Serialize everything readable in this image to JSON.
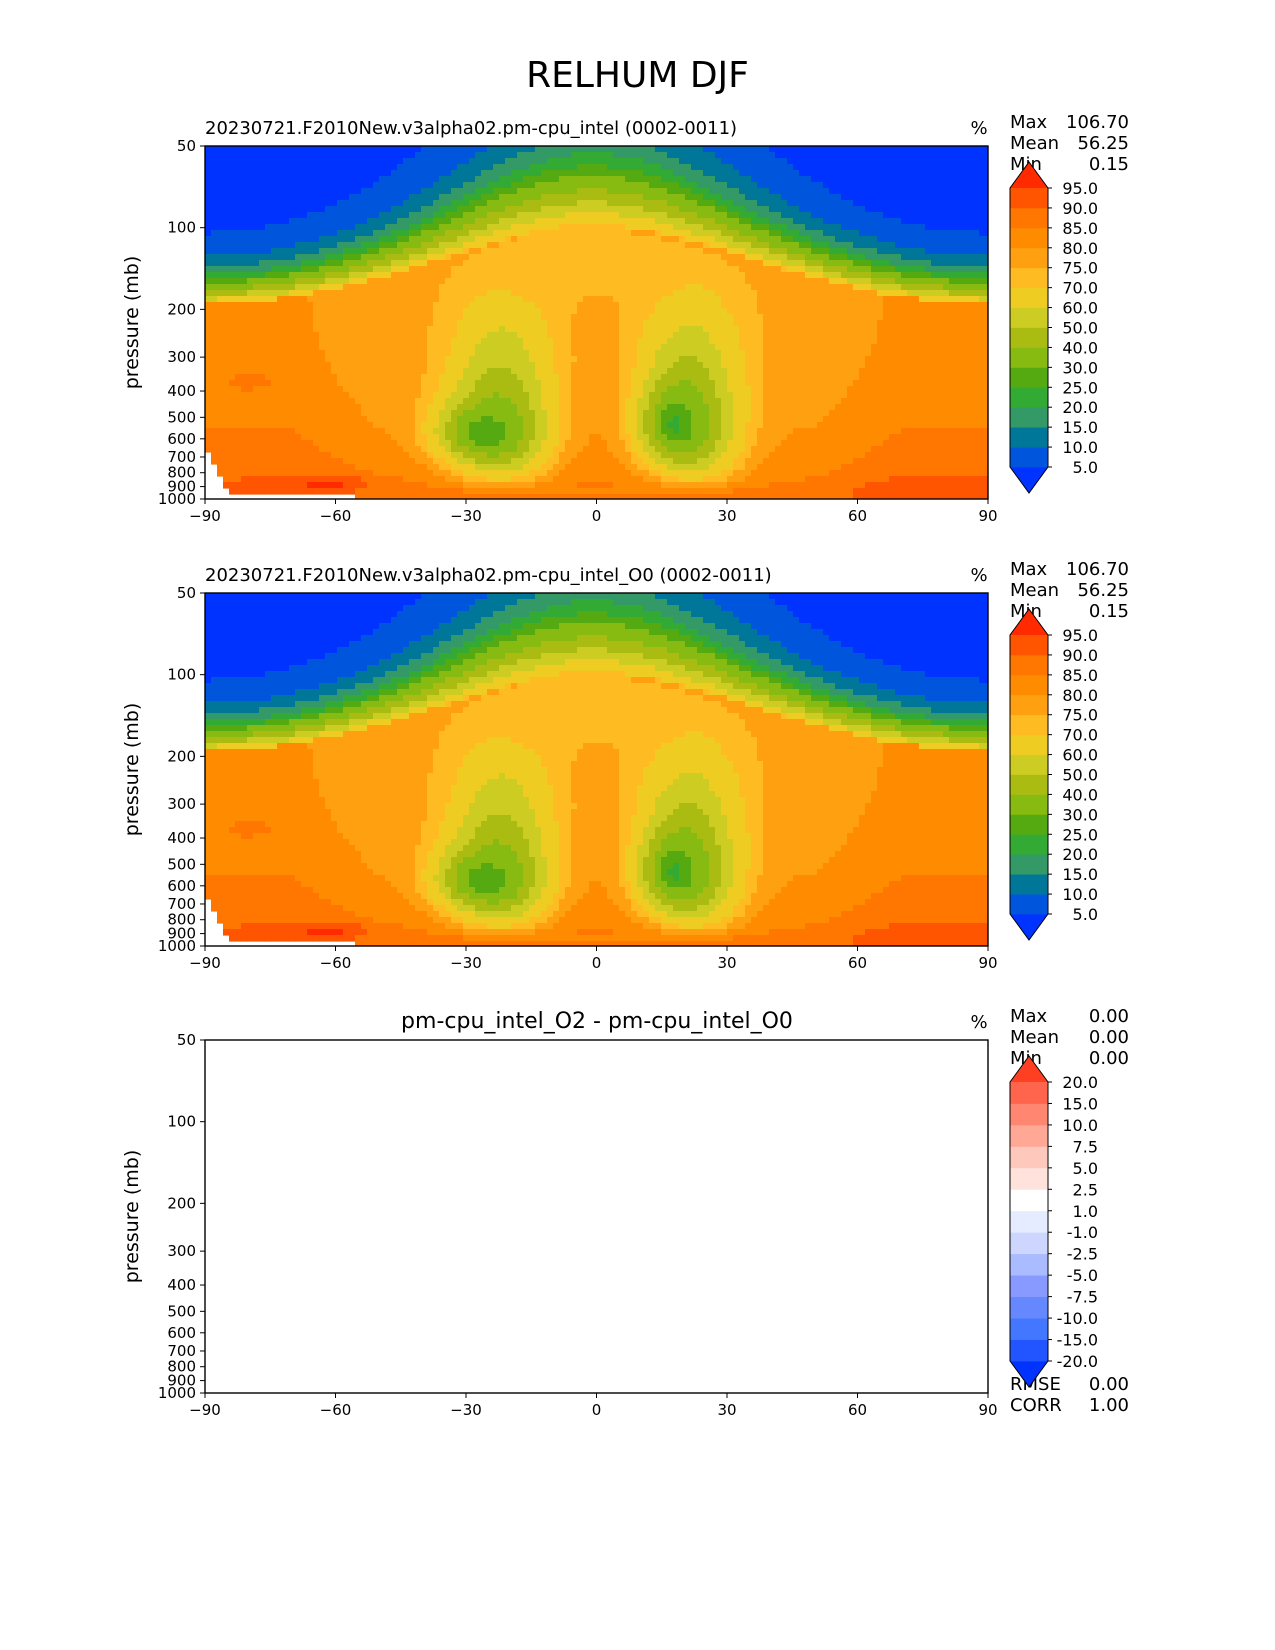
{
  "title": "RELHUM DJF",
  "colors": {
    "rh_fill": [
      "#0033ff",
      "#0055dd",
      "#007799",
      "#339966",
      "#33aa33",
      "#55aa11",
      "#88bb11",
      "#aabb11",
      "#cccc22",
      "#eecc22",
      "#ffbb22",
      "#ffa011",
      "#ff8c00",
      "#ff7700",
      "#ff5500",
      "#ff2a00"
    ],
    "diff_fill": [
      "#0033ff",
      "#2255ff",
      "#4477ff",
      "#6688ff",
      "#8899ff",
      "#aabbff",
      "#ccd6ff",
      "#e6ecff",
      "#ffffff",
      "#ffe2dc",
      "#ffc8bd",
      "#ffa896",
      "#ff8670",
      "#ff654d",
      "#ff3f22"
    ]
  },
  "chart_data": [
    {
      "type": "contour",
      "title": "20230721.F2010New.v3alpha02.pm-cpu_intel (0002-0011)",
      "units": "%",
      "xlabel": "",
      "ylabel": "pressure (mb)",
      "x_ticks": [
        "−90",
        "−60",
        "−30",
        "0",
        "30",
        "60",
        "90"
      ],
      "y_ticks": [
        "50",
        "100",
        "200",
        "300",
        "400",
        "500",
        "600",
        "700",
        "800",
        "900",
        "1000"
      ],
      "xlim": [
        -90,
        90
      ],
      "ylim": [
        1000,
        50
      ],
      "stats": {
        "max_label": "Max",
        "max": "106.70",
        "mean_label": "Mean",
        "mean": "56.25",
        "min_label": "Min",
        "min": "0.15"
      },
      "colorbar_levels": [
        "5.0",
        "10.0",
        "15.0",
        "20.0",
        "25.0",
        "30.0",
        "40.0",
        "50.0",
        "60.0",
        "70.0",
        "75.0",
        "80.0",
        "85.0",
        "90.0",
        "95.0"
      ],
      "blobs": [
        {
          "lat": -62,
          "p": 880,
          "v": 96,
          "rx": 10,
          "ry": 55
        },
        {
          "lat": -80,
          "p": 370,
          "v": 86,
          "rx": 8,
          "ry": 40
        },
        {
          "lat": 78,
          "p": 920,
          "v": 95,
          "rx": 14,
          "ry": 60
        },
        {
          "lat": -26,
          "p": 570,
          "v": 26,
          "rx": 10,
          "ry": 140
        },
        {
          "lat": 18,
          "p": 530,
          "v": 24,
          "rx": 7,
          "ry": 160
        },
        {
          "lat": -3,
          "p": 140,
          "v": 74,
          "rx": 22,
          "ry": 50
        },
        {
          "lat": 0,
          "p": 930,
          "v": 84,
          "rx": 14,
          "ry": 35
        }
      ]
    },
    {
      "type": "contour",
      "title": "20230721.F2010New.v3alpha02.pm-cpu_intel_O0 (0002-0011)",
      "units": "%",
      "xlabel": "",
      "ylabel": "pressure (mb)",
      "x_ticks": [
        "−90",
        "−60",
        "−30",
        "0",
        "30",
        "60",
        "90"
      ],
      "y_ticks": [
        "50",
        "100",
        "200",
        "300",
        "400",
        "500",
        "600",
        "700",
        "800",
        "900",
        "1000"
      ],
      "xlim": [
        -90,
        90
      ],
      "ylim": [
        1000,
        50
      ],
      "stats": {
        "max_label": "Max",
        "max": "106.70",
        "mean_label": "Mean",
        "mean": "56.25",
        "min_label": "Min",
        "min": "0.15"
      },
      "colorbar_levels": [
        "5.0",
        "10.0",
        "15.0",
        "20.0",
        "25.0",
        "30.0",
        "40.0",
        "50.0",
        "60.0",
        "70.0",
        "75.0",
        "80.0",
        "85.0",
        "90.0",
        "95.0"
      ],
      "blobs": [
        {
          "lat": -62,
          "p": 880,
          "v": 96,
          "rx": 10,
          "ry": 55
        },
        {
          "lat": -80,
          "p": 370,
          "v": 86,
          "rx": 8,
          "ry": 40
        },
        {
          "lat": 78,
          "p": 920,
          "v": 95,
          "rx": 14,
          "ry": 60
        },
        {
          "lat": -26,
          "p": 570,
          "v": 26,
          "rx": 10,
          "ry": 140
        },
        {
          "lat": 18,
          "p": 530,
          "v": 24,
          "rx": 7,
          "ry": 160
        },
        {
          "lat": -3,
          "p": 140,
          "v": 74,
          "rx": 22,
          "ry": 50
        },
        {
          "lat": 0,
          "p": 930,
          "v": 84,
          "rx": 14,
          "ry": 35
        }
      ]
    },
    {
      "type": "contour_difference",
      "title": "pm-cpu_intel_O2 - pm-cpu_intel_O0",
      "units": "%",
      "xlabel": "",
      "ylabel": "pressure (mb)",
      "x_ticks": [
        "−90",
        "−60",
        "−30",
        "0",
        "30",
        "60",
        "90"
      ],
      "y_ticks": [
        "50",
        "100",
        "200",
        "300",
        "400",
        "500",
        "600",
        "700",
        "800",
        "900",
        "1000"
      ],
      "xlim": [
        -90,
        90
      ],
      "ylim": [
        1000,
        50
      ],
      "stats": {
        "max_label": "Max",
        "max": "0.00",
        "mean_label": "Mean",
        "mean": "0.00",
        "min_label": "Min",
        "min": "0.00"
      },
      "colorbar_levels": [
        "-20.0",
        "-15.0",
        "-10.0",
        "-7.5",
        "-5.0",
        "-2.5",
        "-1.0",
        "1.0",
        "2.5",
        "5.0",
        "7.5",
        "10.0",
        "15.0",
        "20.0"
      ],
      "metrics": {
        "rmse_label": "RMSE",
        "rmse": "0.00",
        "corr_label": "CORR",
        "corr": "1.00"
      },
      "values": "all zero"
    }
  ]
}
